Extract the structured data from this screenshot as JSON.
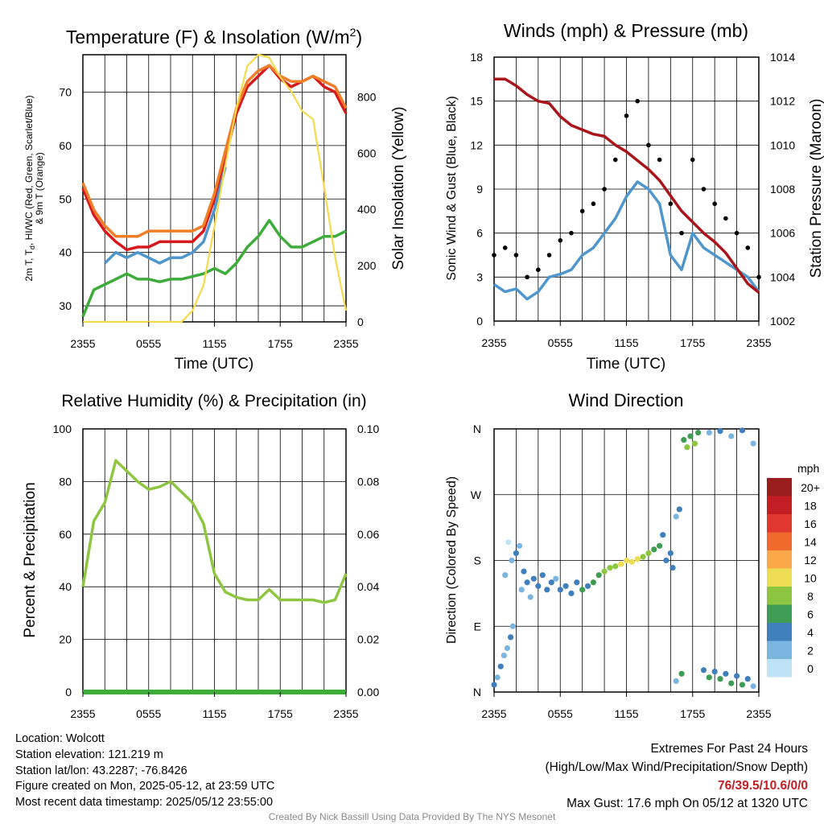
{
  "chart_data": [
    {
      "type": "line",
      "title": "Temperature (F) & Insolation (W/m²)",
      "xlabel": "Time (UTC)",
      "ylabel": "2m T, Td, HI/WC (Red, Green, Scarlet/Blue) & 9m T (Orange)",
      "ylabel_right": "Solar Insolation (Yellow)",
      "x_ticks": [
        "2355",
        "0555",
        "1155",
        "1755",
        "2355"
      ],
      "ylim": [
        27,
        77
      ],
      "y_ticks": [
        30,
        40,
        50,
        60,
        70
      ],
      "ylim_right": [
        0,
        950
      ],
      "y_ticks_right": [
        0,
        200,
        400,
        600,
        800
      ],
      "x_hours": [
        0,
        1,
        2,
        3,
        4,
        5,
        6,
        7,
        8,
        9,
        10,
        11,
        12,
        13,
        14,
        15,
        16,
        17,
        18,
        19,
        20,
        21,
        22,
        23,
        24
      ],
      "series": [
        {
          "name": "2m T",
          "color": "#d7191c",
          "values": [
            52,
            47,
            44,
            42,
            40.5,
            41,
            41,
            42,
            42,
            42,
            42,
            44,
            50,
            58,
            66,
            71,
            73,
            75,
            72.5,
            71,
            72,
            73,
            71,
            70,
            66
          ]
        },
        {
          "name": "9m T",
          "color": "#f07e28",
          "values": [
            53,
            48,
            45,
            43,
            43,
            43,
            44,
            44,
            44,
            44,
            44,
            45,
            51,
            59,
            67,
            72,
            74,
            75,
            73,
            72,
            72,
            73,
            72,
            71,
            67
          ]
        },
        {
          "name": "Td",
          "color": "#3dac3a",
          "values": [
            28,
            33,
            34,
            35,
            36,
            35,
            35,
            34.5,
            35,
            35,
            35.5,
            36,
            37,
            36,
            38,
            41,
            43,
            46,
            43,
            41,
            41,
            42,
            43,
            43,
            44
          ]
        },
        {
          "name": "HI/WC",
          "color": "#4f96cd",
          "values": [
            null,
            null,
            38,
            40,
            39,
            40,
            39,
            38,
            39,
            39,
            40,
            42,
            48,
            56,
            null,
            null,
            null,
            null,
            null,
            null,
            null,
            null,
            null,
            null,
            null
          ]
        },
        {
          "name": "Solar Insolation",
          "color": "#f6da4b",
          "axis": "right",
          "values": [
            0,
            0,
            0,
            0,
            0,
            0,
            0,
            0,
            0,
            0,
            40,
            130,
            340,
            560,
            760,
            910,
            950,
            940,
            870,
            820,
            750,
            720,
            480,
            230,
            40
          ]
        }
      ]
    },
    {
      "type": "line",
      "title": "Winds (mph) & Pressure (mb)",
      "xlabel": "Time (UTC)",
      "ylabel": "Sonic Wind & Gust (Blue, Black)",
      "ylabel_right": "Station Pressure (Maroon)",
      "x_ticks": [
        "2355",
        "0555",
        "1155",
        "1755",
        "2355"
      ],
      "ylim": [
        0,
        18
      ],
      "y_ticks": [
        0,
        3,
        6,
        9,
        12,
        15,
        18
      ],
      "ylim_right": [
        1002,
        1014
      ],
      "y_ticks_right": [
        1002,
        1004,
        1006,
        1008,
        1010,
        1012,
        1014
      ],
      "x_hours": [
        0,
        1,
        2,
        3,
        4,
        5,
        6,
        7,
        8,
        9,
        10,
        11,
        12,
        13,
        14,
        15,
        16,
        17,
        18,
        19,
        20,
        21,
        22,
        23,
        24
      ],
      "series": [
        {
          "name": "Sonic Wind",
          "color": "#4f96cd",
          "values": [
            2.5,
            2.0,
            2.2,
            1.5,
            2.0,
            3.0,
            3.2,
            3.5,
            4.5,
            5.0,
            6.0,
            7.0,
            8.5,
            9.5,
            9.0,
            8.0,
            4.5,
            3.5,
            6.0,
            5.0,
            4.5,
            4.0,
            3.5,
            3.0,
            2.0
          ]
        },
        {
          "name": "Gust",
          "color": "#000000",
          "values": [
            4.5,
            5.0,
            4.5,
            3.0,
            3.5,
            4.5,
            5.5,
            6.0,
            7.5,
            8.0,
            9.0,
            11.0,
            14.0,
            15.0,
            12.0,
            11.0,
            8.0,
            6.0,
            11.0,
            9.0,
            8.0,
            7.0,
            6.0,
            5.0,
            3.0
          ]
        },
        {
          "name": "Station Pressure",
          "color": "#a8161b",
          "axis": "right",
          "values": [
            1013.0,
            1013.0,
            1012.7,
            1012.3,
            1012.0,
            1011.9,
            1011.3,
            1010.9,
            1010.7,
            1010.5,
            1010.4,
            1010.0,
            1009.7,
            1009.3,
            1008.9,
            1008.4,
            1007.7,
            1007.0,
            1006.5,
            1006.0,
            1005.6,
            1005.1,
            1004.4,
            1003.7,
            1003.3
          ]
        }
      ]
    },
    {
      "type": "line",
      "title": "Relative Humidity (%) & Precipitation (in)",
      "ylabel": "Percent & Precipitation",
      "x_ticks": [
        "2355",
        "0555",
        "1155",
        "1755",
        "2355"
      ],
      "ylim": [
        0,
        100
      ],
      "y_ticks": [
        0,
        20,
        40,
        60,
        80,
        100
      ],
      "ylim_right": [
        0,
        0.1
      ],
      "y_ticks_right": [
        "0.00",
        "0.02",
        "0.04",
        "0.06",
        "0.08",
        "0.10"
      ],
      "x_hours": [
        0,
        1,
        2,
        3,
        4,
        5,
        6,
        7,
        8,
        9,
        10,
        11,
        12,
        13,
        14,
        15,
        16,
        17,
        18,
        19,
        20,
        21,
        22,
        23,
        24
      ],
      "series": [
        {
          "name": "Relative Humidity",
          "color": "#8ec642",
          "values": [
            40,
            65,
            72,
            88,
            84,
            80,
            77,
            78,
            80,
            76,
            72,
            64,
            45,
            38,
            36,
            35,
            35,
            39,
            35,
            35,
            35,
            35,
            34,
            35,
            45
          ]
        },
        {
          "name": "Precipitation",
          "color": "#3dac3a",
          "values": [
            0,
            0,
            0,
            0,
            0,
            0,
            0,
            0,
            0,
            0,
            0,
            0,
            0,
            0,
            0,
            0,
            0,
            0,
            0,
            0,
            0,
            0,
            0,
            0,
            0
          ]
        }
      ]
    },
    {
      "type": "scatter",
      "title": "Wind Direction",
      "ylabel": "Direction (Colored By Speed)",
      "x_ticks": [
        "2355",
        "0555",
        "1155",
        "1755",
        "2355"
      ],
      "y_ticks": [
        "N",
        "E",
        "S",
        "W",
        "N"
      ],
      "ylim": [
        0,
        360
      ],
      "legend_title": "mph",
      "legend_labels": [
        "20+",
        "18",
        "16",
        "14",
        "12",
        "10",
        "8",
        "6",
        "4",
        "2",
        "0"
      ],
      "legend_colors": [
        "#991d1d",
        "#c41e25",
        "#e0372e",
        "#f16a2d",
        "#f9a948",
        "#ecdd52",
        "#8cc540",
        "#3e9c55",
        "#3f7fbb",
        "#7ab5e0",
        "#bfe3f6"
      ],
      "points": [
        {
          "h": 0.0,
          "dir": 10,
          "spd": 3
        },
        {
          "h": 0.3,
          "dir": 20,
          "spd": 2
        },
        {
          "h": 0.6,
          "dir": 35,
          "spd": 4
        },
        {
          "h": 0.9,
          "dir": 50,
          "spd": 2
        },
        {
          "h": 1.2,
          "dir": 60,
          "spd": 1
        },
        {
          "h": 1.5,
          "dir": 75,
          "spd": 3
        },
        {
          "h": 1.7,
          "dir": 90,
          "spd": 1
        },
        {
          "h": 1.0,
          "dir": 160,
          "spd": 1
        },
        {
          "h": 1.3,
          "dir": 205,
          "spd": 0
        },
        {
          "h": 1.6,
          "dir": 180,
          "spd": 2
        },
        {
          "h": 2.0,
          "dir": 190,
          "spd": 3
        },
        {
          "h": 2.3,
          "dir": 200,
          "spd": 2
        },
        {
          "h": 2.5,
          "dir": 140,
          "spd": 2
        },
        {
          "h": 2.7,
          "dir": 165,
          "spd": 4
        },
        {
          "h": 3.0,
          "dir": 150,
          "spd": 3
        },
        {
          "h": 3.3,
          "dir": 130,
          "spd": 1
        },
        {
          "h": 3.6,
          "dir": 155,
          "spd": 3
        },
        {
          "h": 4.0,
          "dir": 145,
          "spd": 4
        },
        {
          "h": 4.4,
          "dir": 160,
          "spd": 3
        },
        {
          "h": 4.8,
          "dir": 140,
          "spd": 4
        },
        {
          "h": 5.2,
          "dir": 150,
          "spd": 3
        },
        {
          "h": 5.6,
          "dir": 155,
          "spd": 2
        },
        {
          "h": 6.0,
          "dir": 140,
          "spd": 3
        },
        {
          "h": 6.5,
          "dir": 145,
          "spd": 4
        },
        {
          "h": 7.0,
          "dir": 135,
          "spd": 3
        },
        {
          "h": 7.5,
          "dir": 150,
          "spd": 4
        },
        {
          "h": 8.0,
          "dir": 140,
          "spd": 5
        },
        {
          "h": 8.5,
          "dir": 145,
          "spd": 4
        },
        {
          "h": 9.0,
          "dir": 150,
          "spd": 5
        },
        {
          "h": 9.5,
          "dir": 160,
          "spd": 6
        },
        {
          "h": 10.0,
          "dir": 165,
          "spd": 7
        },
        {
          "h": 10.5,
          "dir": 170,
          "spd": 7
        },
        {
          "h": 11.0,
          "dir": 172,
          "spd": 8
        },
        {
          "h": 11.5,
          "dir": 175,
          "spd": 9
        },
        {
          "h": 12.0,
          "dir": 180,
          "spd": 10
        },
        {
          "h": 12.5,
          "dir": 178,
          "spd": 10
        },
        {
          "h": 13.0,
          "dir": 182,
          "spd": 9
        },
        {
          "h": 13.5,
          "dir": 185,
          "spd": 8
        },
        {
          "h": 14.0,
          "dir": 190,
          "spd": 7
        },
        {
          "h": 14.5,
          "dir": 195,
          "spd": 6
        },
        {
          "h": 15.0,
          "dir": 200,
          "spd": 5
        },
        {
          "h": 15.3,
          "dir": 215,
          "spd": 4
        },
        {
          "h": 15.6,
          "dir": 180,
          "spd": 3
        },
        {
          "h": 16.0,
          "dir": 190,
          "spd": 4
        },
        {
          "h": 16.2,
          "dir": 170,
          "spd": 3
        },
        {
          "h": 16.5,
          "dir": 240,
          "spd": 2
        },
        {
          "h": 16.8,
          "dir": 250,
          "spd": 3
        },
        {
          "h": 17.2,
          "dir": 345,
          "spd": 6
        },
        {
          "h": 17.5,
          "dir": 335,
          "spd": 7
        },
        {
          "h": 17.8,
          "dir": 350,
          "spd": 6
        },
        {
          "h": 18.2,
          "dir": 340,
          "spd": 7
        },
        {
          "h": 18.5,
          "dir": 355,
          "spd": 5
        },
        {
          "h": 19.5,
          "dir": 355,
          "spd": 2
        },
        {
          "h": 20.5,
          "dir": 357,
          "spd": 3
        },
        {
          "h": 21.5,
          "dir": 350,
          "spd": 2
        },
        {
          "h": 22.5,
          "dir": 358,
          "spd": 3
        },
        {
          "h": 23.5,
          "dir": 340,
          "spd": 2
        },
        {
          "h": 16.5,
          "dir": 15,
          "spd": 2
        },
        {
          "h": 17.0,
          "dir": 25,
          "spd": 5
        },
        {
          "h": 19.0,
          "dir": 30,
          "spd": 4
        },
        {
          "h": 19.5,
          "dir": 20,
          "spd": 6
        },
        {
          "h": 20.0,
          "dir": 28,
          "spd": 4
        },
        {
          "h": 20.5,
          "dir": 18,
          "spd": 5
        },
        {
          "h": 21.0,
          "dir": 25,
          "spd": 3
        },
        {
          "h": 21.5,
          "dir": 12,
          "spd": 6
        },
        {
          "h": 22.0,
          "dir": 22,
          "spd": 4
        },
        {
          "h": 22.5,
          "dir": 10,
          "spd": 5
        },
        {
          "h": 23.0,
          "dir": 18,
          "spd": 3
        },
        {
          "h": 23.5,
          "dir": 8,
          "spd": 2
        }
      ]
    }
  ],
  "footer": {
    "location": "Location: Wolcott",
    "elevation": "Station elevation: 121.219 m",
    "latlon": "Station lat/lon: 43.2287; -76.8426",
    "created": "Figure created on Mon, 2025-05-12, at 23:59 UTC",
    "recent": "Most recent data timestamp: 2025/05/12 23:55:00",
    "extremes_title": "Extremes For Past 24 Hours",
    "extremes_sub": "(High/Low/Max Wind/Precipitation/Snow Depth)",
    "extremes_values": "76/39.5/10.6/0/0",
    "max_gust": "Max Gust: 17.6 mph On 05/12 at 1320 UTC",
    "credit": "Created By Nick Bassill Using Data Provided By The NYS Mesonet",
    "extremes_color": "#c41e25"
  }
}
